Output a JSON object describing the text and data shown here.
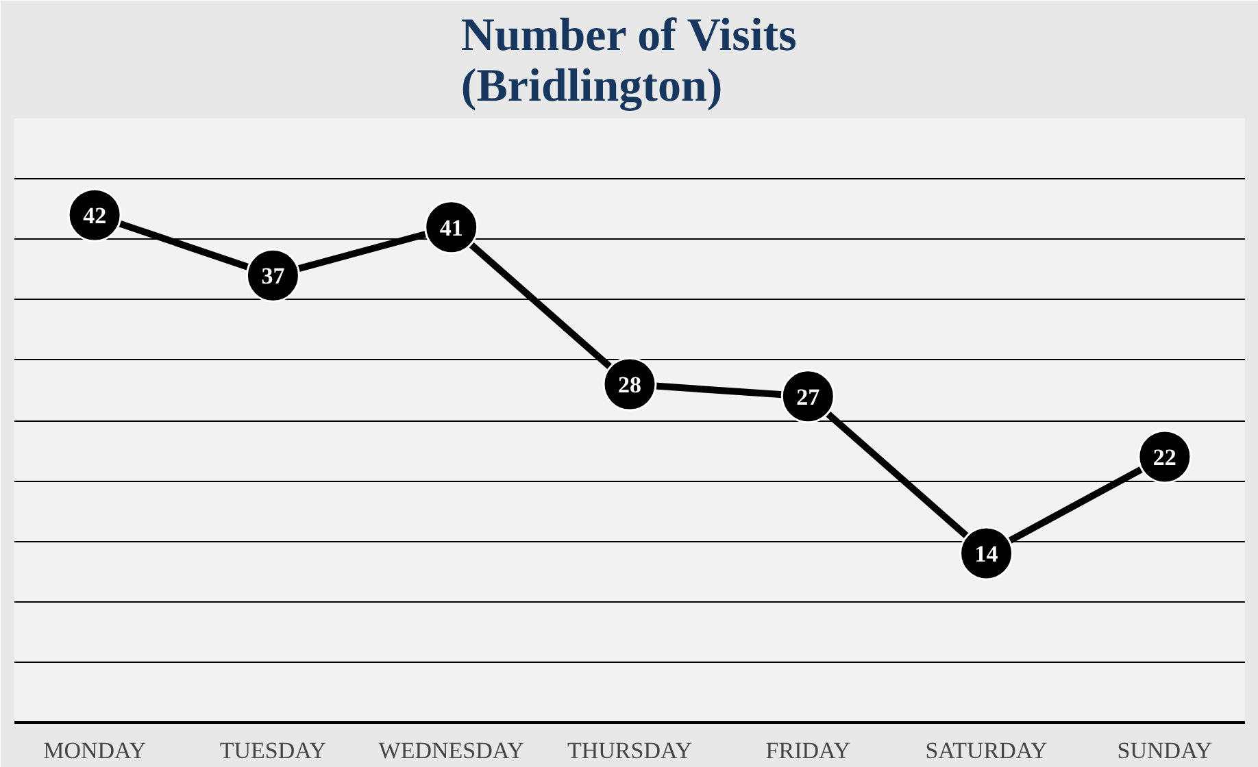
{
  "chart_data": {
    "type": "line",
    "title": "Number of Visits\n(Bridlington)",
    "categories": [
      "MONDAY",
      "TUESDAY",
      "WEDNESDAY",
      "THURSDAY",
      "FRIDAY",
      "SATURDAY",
      "SUNDAY"
    ],
    "series": [
      {
        "color": "#000000",
        "values": [
          42,
          37,
          41,
          28,
          27,
          14,
          22
        ]
      }
    ],
    "ylim": [
      0,
      50
    ],
    "yticks": [
      {
        "value": 0,
        "label": null
      },
      {
        "value": 5,
        "label": null
      },
      {
        "value": 10,
        "label": null
      },
      {
        "value": 15,
        "label": null
      },
      {
        "value": 20,
        "label": null
      },
      {
        "value": 25,
        "label": null
      },
      {
        "value": 30,
        "label": null
      },
      {
        "value": 35,
        "label": null
      },
      {
        "value": 40,
        "label": null
      },
      {
        "value": 45,
        "label": null
      }
    ],
    "tick_labels": "x",
    "grid": "y",
    "marker": "circle",
    "line_style": "solid",
    "data_labels": true
  }
}
